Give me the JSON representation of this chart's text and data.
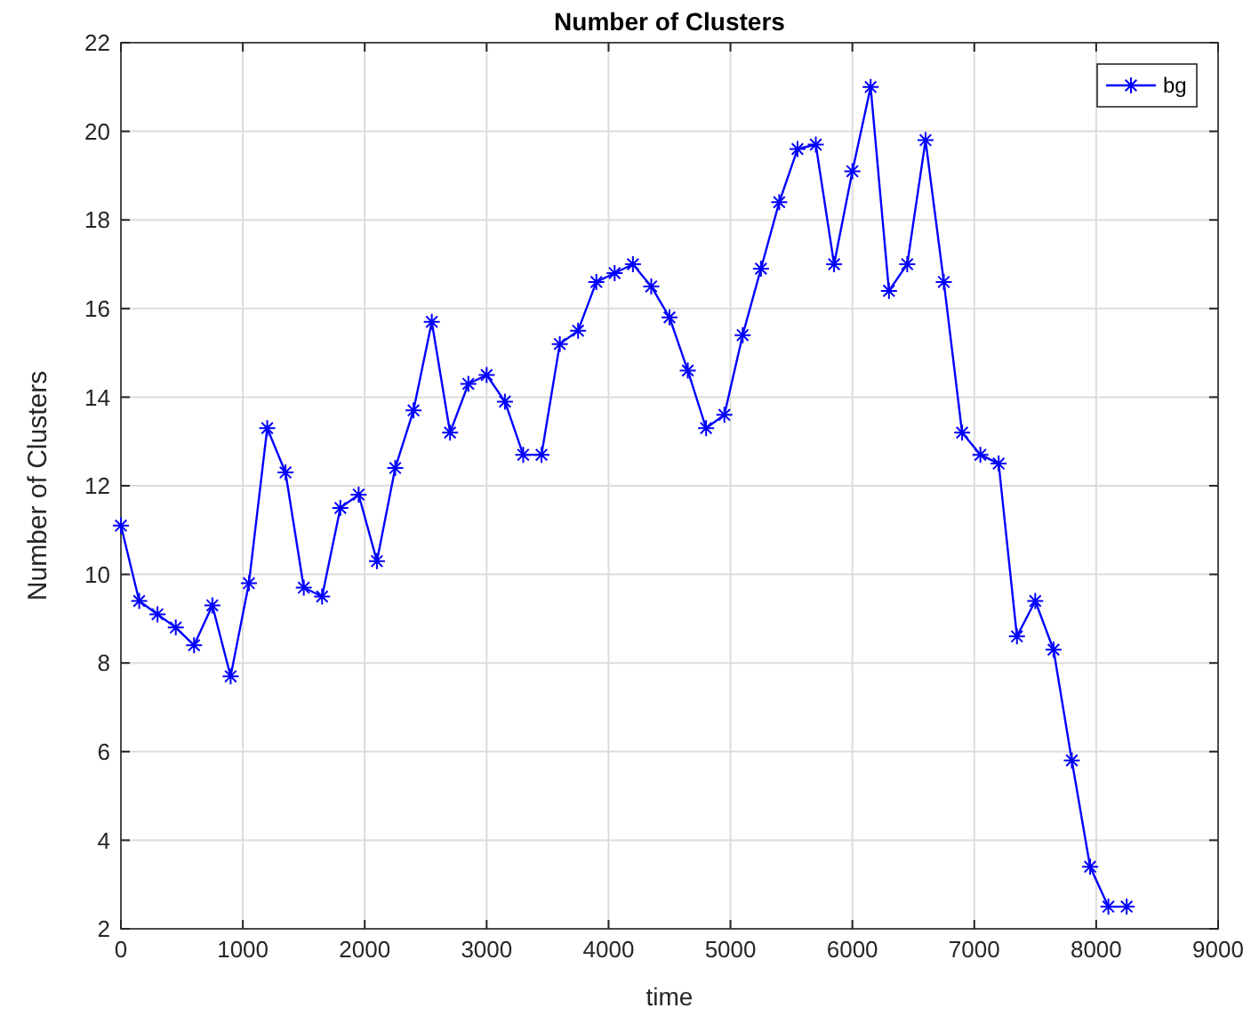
{
  "chart_data": {
    "type": "line",
    "title": "Number of Clusters",
    "xlabel": "time",
    "ylabel": "Number of Clusters",
    "x": [
      0,
      150,
      300,
      450,
      600,
      750,
      900,
      1050,
      1200,
      1350,
      1500,
      1650,
      1800,
      1950,
      2100,
      2250,
      2400,
      2550,
      2700,
      2850,
      3000,
      3150,
      3300,
      3450,
      3600,
      3750,
      3900,
      4050,
      4200,
      4350,
      4500,
      4650,
      4800,
      4950,
      5100,
      5250,
      5400,
      5550,
      5700,
      5850,
      6000,
      6150,
      6300,
      6450,
      6600,
      6750,
      6900,
      7050,
      7200,
      7350,
      7500,
      7650,
      7800,
      7950,
      8100,
      8250
    ],
    "series": [
      {
        "name": "bg",
        "color": "#0000ff",
        "values": [
          11.1,
          9.4,
          9.1,
          8.8,
          8.4,
          9.3,
          7.7,
          9.8,
          13.3,
          12.3,
          9.7,
          9.5,
          11.5,
          11.8,
          10.3,
          12.4,
          13.7,
          15.7,
          13.2,
          14.3,
          14.5,
          13.9,
          12.7,
          12.7,
          15.2,
          15.5,
          16.6,
          16.8,
          17.0,
          16.5,
          15.8,
          14.6,
          13.3,
          13.6,
          15.4,
          16.9,
          18.4,
          19.6,
          19.7,
          17.0,
          19.1,
          21.0,
          16.4,
          17.0,
          19.8,
          16.6,
          13.2,
          12.7,
          12.5,
          8.6,
          9.4,
          8.3,
          5.8,
          3.4,
          2.5,
          2.5
        ]
      }
    ],
    "xlim": [
      0,
      9000
    ],
    "xticks": [
      0,
      1000,
      2000,
      3000,
      4000,
      5000,
      6000,
      7000,
      8000,
      9000
    ],
    "ylim": [
      2,
      22
    ],
    "yticks": [
      2,
      4,
      6,
      8,
      10,
      12,
      14,
      16,
      18,
      20,
      22
    ],
    "grid": true,
    "legend": "top right",
    "marker": "cross",
    "line_style": "solid"
  }
}
